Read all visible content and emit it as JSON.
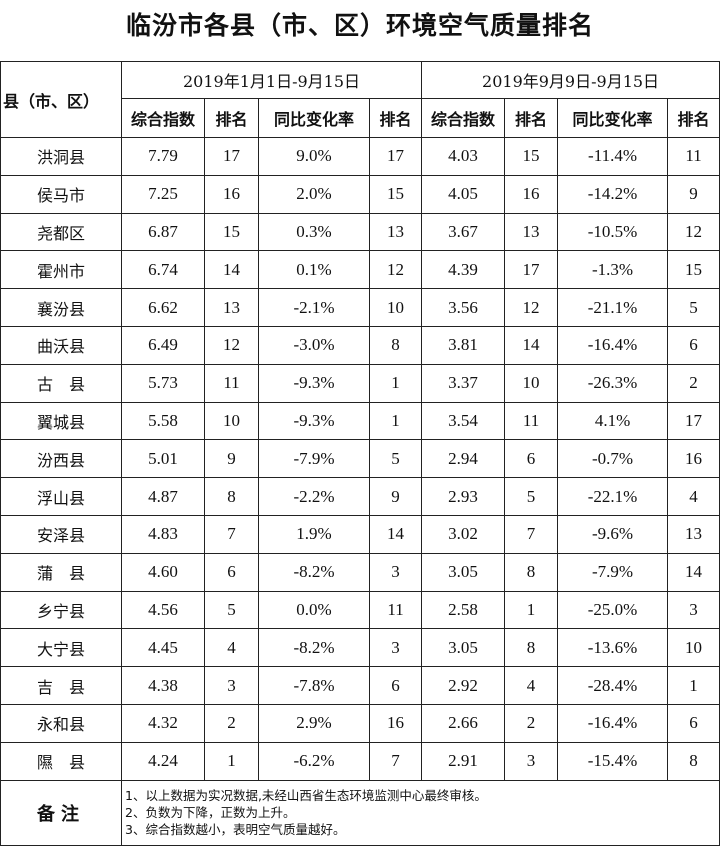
{
  "title": "临汾市各县（市、区）环境空气质量排名",
  "header": {
    "county_col": "县（市、区）",
    "period1": "2019年1月1日-9月15日",
    "period2": "2019年9月9日-9月15日",
    "subcols": [
      "综合指数",
      "排名",
      "同比变化率",
      "排名",
      "综合指数",
      "排名",
      "同比变化率",
      "排名"
    ]
  },
  "rows": [
    [
      "洪洞县",
      "7.79",
      "17",
      "9.0%",
      "17",
      "4.03",
      "15",
      "-11.4%",
      "11"
    ],
    [
      "侯马市",
      "7.25",
      "16",
      "2.0%",
      "15",
      "4.05",
      "16",
      "-14.2%",
      "9"
    ],
    [
      "尧都区",
      "6.87",
      "15",
      "0.3%",
      "13",
      "3.67",
      "13",
      "-10.5%",
      "12"
    ],
    [
      "霍州市",
      "6.74",
      "14",
      "0.1%",
      "12",
      "4.39",
      "17",
      "-1.3%",
      "15"
    ],
    [
      "襄汾县",
      "6.62",
      "13",
      "-2.1%",
      "10",
      "3.56",
      "12",
      "-21.1%",
      "5"
    ],
    [
      "曲沃县",
      "6.49",
      "12",
      "-3.0%",
      "8",
      "3.81",
      "14",
      "-16.4%",
      "6"
    ],
    [
      "古　县",
      "5.73",
      "11",
      "-9.3%",
      "1",
      "3.37",
      "10",
      "-26.3%",
      "2"
    ],
    [
      "翼城县",
      "5.58",
      "10",
      "-9.3%",
      "1",
      "3.54",
      "11",
      "4.1%",
      "17"
    ],
    [
      "汾西县",
      "5.01",
      "9",
      "-7.9%",
      "5",
      "2.94",
      "6",
      "-0.7%",
      "16"
    ],
    [
      "浮山县",
      "4.87",
      "8",
      "-2.2%",
      "9",
      "2.93",
      "5",
      "-22.1%",
      "4"
    ],
    [
      "安泽县",
      "4.83",
      "7",
      "1.9%",
      "14",
      "3.02",
      "7",
      "-9.6%",
      "13"
    ],
    [
      "蒲　县",
      "4.60",
      "6",
      "-8.2%",
      "3",
      "3.05",
      "8",
      "-7.9%",
      "14"
    ],
    [
      "乡宁县",
      "4.56",
      "5",
      "0.0%",
      "11",
      "2.58",
      "1",
      "-25.0%",
      "3"
    ],
    [
      "大宁县",
      "4.45",
      "4",
      "-8.2%",
      "3",
      "3.05",
      "8",
      "-13.6%",
      "10"
    ],
    [
      "吉　县",
      "4.38",
      "3",
      "-7.8%",
      "6",
      "2.92",
      "4",
      "-28.4%",
      "1"
    ],
    [
      "永和县",
      "4.32",
      "2",
      "2.9%",
      "16",
      "2.66",
      "2",
      "-16.4%",
      "6"
    ],
    [
      "隰　县",
      "4.24",
      "1",
      "-6.2%",
      "7",
      "2.91",
      "3",
      "-15.4%",
      "8"
    ]
  ],
  "notes": {
    "label": "备注",
    "items": [
      "1、以上数据为实况数据,未经山西省生态环境监测中心最终审核。",
      "2、负数为下降，正数为上升。",
      "3、综合指数越小，表明空气质量越好。"
    ]
  }
}
